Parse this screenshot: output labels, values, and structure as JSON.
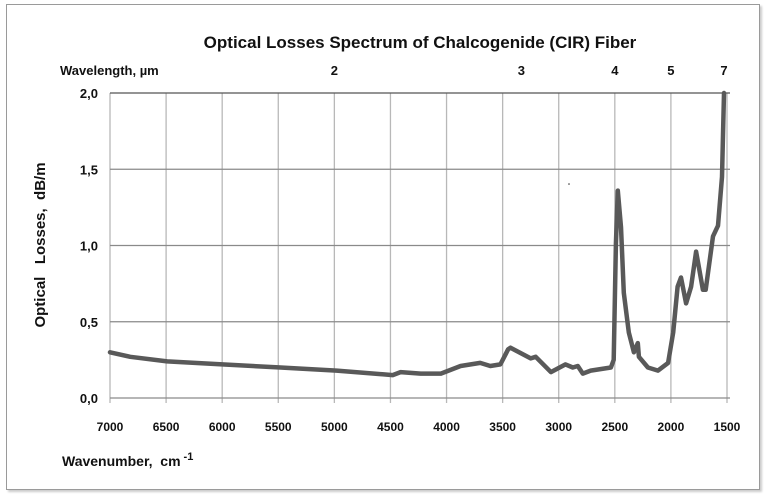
{
  "chart_data": {
    "type": "line",
    "title": "Optical Losses Spectrum of Chalcogenide (CIR) Fiber",
    "xlabel": "Wavenumber,  cm",
    "xlabel_superscript": "-1",
    "ylabel": "Optical   Losses,  dB/m",
    "top_axis_label": "Wavelength, µm",
    "top_axis_ticks": [
      {
        "label": "2",
        "wavenumber": 5000
      },
      {
        "label": "3",
        "wavenumber": 3333
      },
      {
        "label": "4",
        "wavenumber": 2500
      },
      {
        "label": "5",
        "wavenumber": 2000
      },
      {
        "label": "7",
        "wavenumber": 1429
      }
    ],
    "xlim": [
      7000,
      1500
    ],
    "ylim": [
      0,
      2.0
    ],
    "x_reversed": true,
    "x_ticks": [
      7000,
      6500,
      6000,
      5500,
      5000,
      4500,
      4000,
      3500,
      3000,
      2500,
      2000,
      1500
    ],
    "x_tick_labels": [
      "7000",
      "6500",
      "6000",
      "5500",
      "5000",
      "4500",
      "4000",
      "3500",
      "3000",
      "2500",
      "2000",
      "1500"
    ],
    "y_ticks": [
      0,
      0.5,
      1.0,
      1.5,
      2.0
    ],
    "y_tick_labels": [
      "0,0",
      "0,5",
      "1,0",
      "1,5",
      "2,0"
    ],
    "grid": true,
    "line_color": "#595959",
    "series": [
      {
        "x": [
          7000,
          6820,
          6490,
          6000,
          5480,
          4980,
          4480,
          4410,
          4230,
          4050,
          3875,
          3700,
          3610,
          3520,
          3450,
          3430,
          3250,
          3205,
          3070,
          2940,
          2875,
          2830,
          2785,
          2715,
          2535,
          2510,
          2490,
          2473,
          2445,
          2420,
          2375,
          2330,
          2295,
          2285,
          2205,
          2115,
          2025,
          1980,
          1940,
          1910,
          1865,
          1820,
          1775,
          1715,
          1690,
          1625,
          1580,
          1545,
          1527
        ],
        "y": [
          0.3,
          0.27,
          0.24,
          0.22,
          0.2,
          0.18,
          0.15,
          0.17,
          0.16,
          0.16,
          0.21,
          0.23,
          0.21,
          0.22,
          0.32,
          0.33,
          0.26,
          0.27,
          0.17,
          0.22,
          0.2,
          0.21,
          0.16,
          0.18,
          0.2,
          0.25,
          1.01,
          1.36,
          1.12,
          0.69,
          0.43,
          0.3,
          0.36,
          0.27,
          0.2,
          0.18,
          0.23,
          0.43,
          0.73,
          0.79,
          0.62,
          0.73,
          0.96,
          0.71,
          0.71,
          1.06,
          1.13,
          1.45,
          2.0
        ]
      }
    ]
  }
}
